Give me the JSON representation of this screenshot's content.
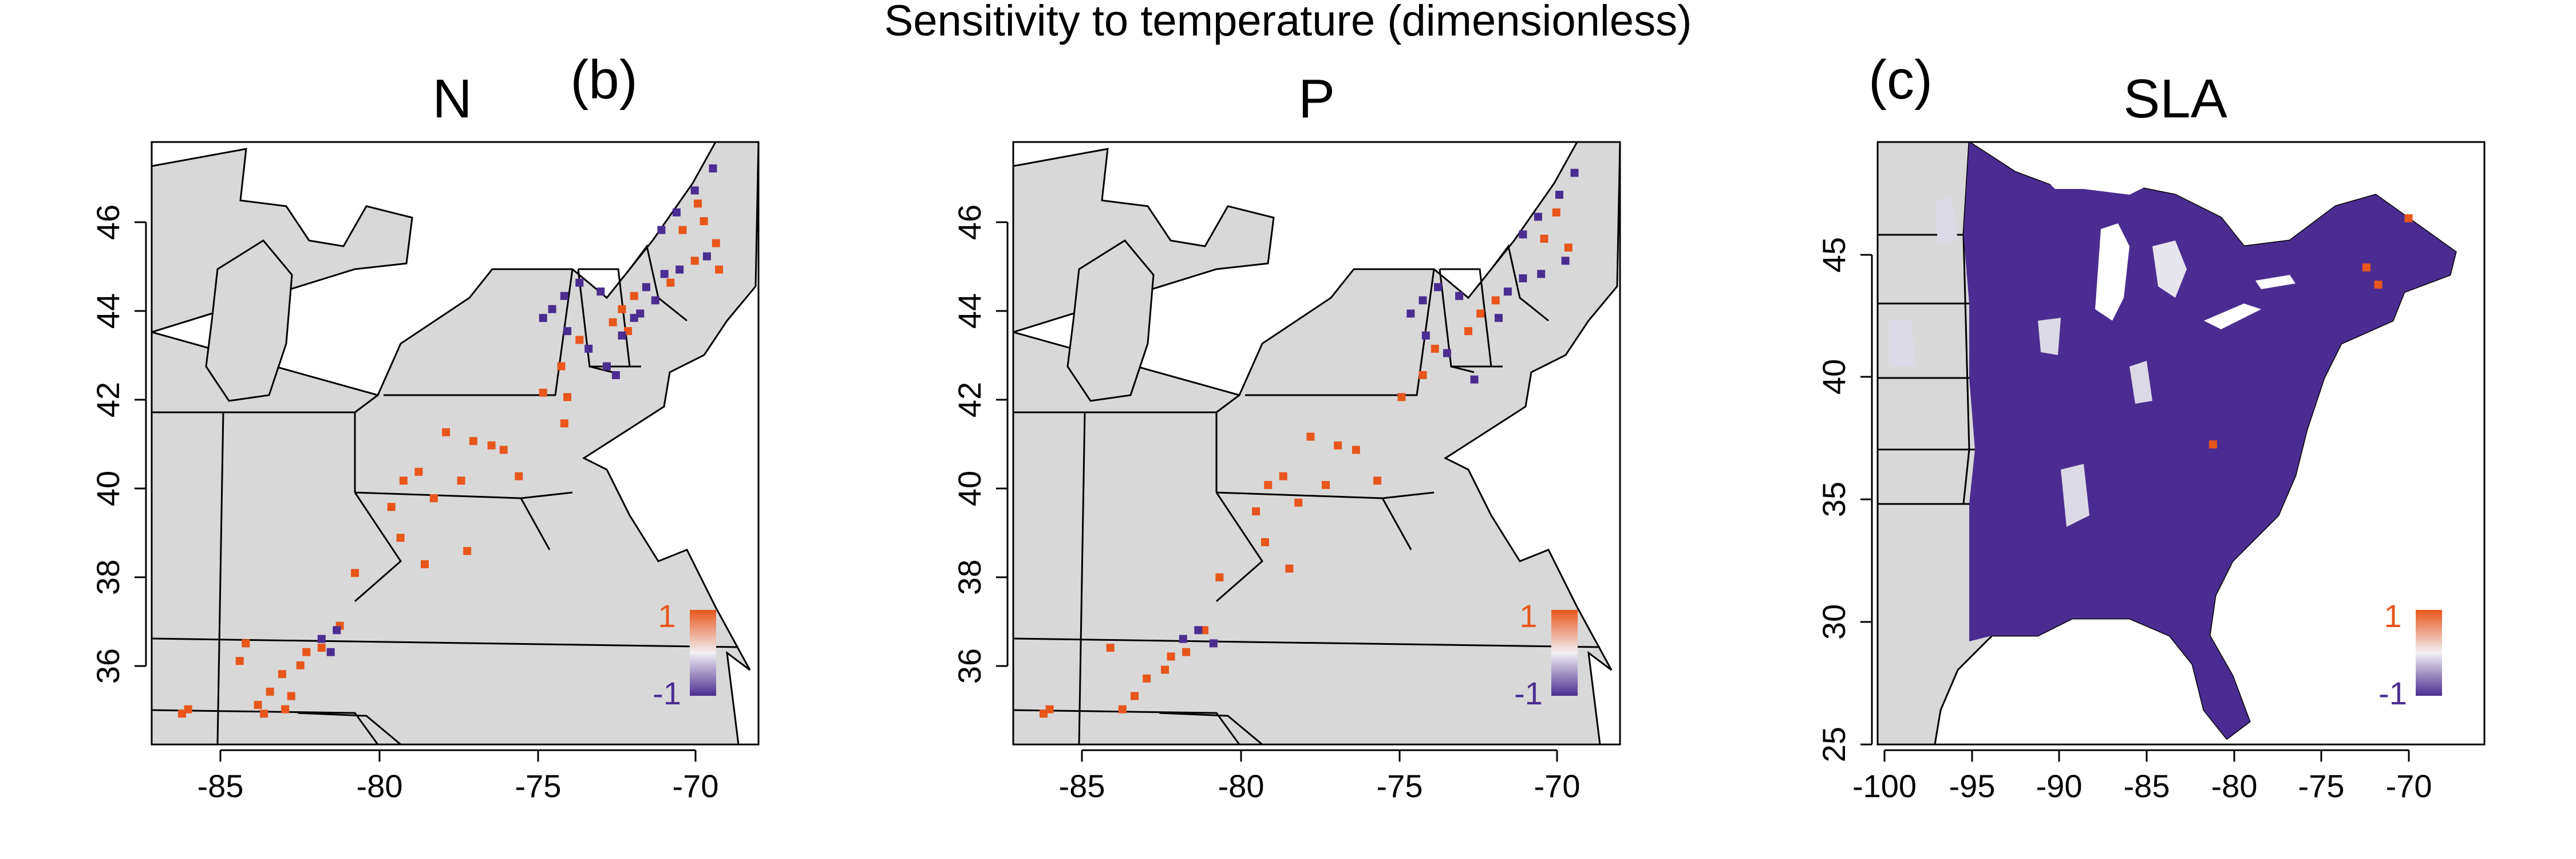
{
  "title": "Sensitivity to temperature (dimensionless)",
  "colors": {
    "positive": "#e8561c",
    "negative": "#4b2d91",
    "land": "#d8d8d8",
    "border": "#000000",
    "frame": "#000000"
  },
  "panels": [
    {
      "id": "n",
      "title": "N",
      "panel_tag": "(b)",
      "xlim": [
        -87.5,
        -67.5
      ],
      "ylim": [
        34.2,
        47.9
      ],
      "xticks": [
        "-85",
        "-80",
        "-75",
        "-70"
      ],
      "yticks": [
        "46",
        "44",
        "42",
        "40",
        "38",
        "36"
      ],
      "legend": {
        "max_label": "1",
        "min_label": "-1"
      }
    },
    {
      "id": "p",
      "title": "P",
      "panel_tag": "",
      "xlim": [
        -87.5,
        -67.5
      ],
      "ylim": [
        34.2,
        47.9
      ],
      "xticks": [
        "-85",
        "-80",
        "-75",
        "-70"
      ],
      "yticks": [
        "46",
        "44",
        "42",
        "40",
        "38",
        "36"
      ],
      "legend": {
        "max_label": "1",
        "min_label": "-1"
      }
    },
    {
      "id": "sla",
      "title": "SLA",
      "panel_tag": "(c)",
      "xlim": [
        -101.5,
        -65.5
      ],
      "ylim": [
        24.8,
        49.3
      ],
      "xticks": [
        "-100",
        "-95",
        "-90",
        "-85",
        "-80",
        "-75",
        "-70"
      ],
      "yticks": [
        "45",
        "40",
        "35",
        "30",
        "25"
      ],
      "legend": {
        "max_label": "1",
        "min_label": "-1"
      }
    }
  ],
  "chart_data": [
    {
      "type": "scatter",
      "panel": "N",
      "xlabel": "",
      "ylabel": "",
      "xlim": [
        -87.5,
        -67.5
      ],
      "ylim": [
        34.2,
        47.9
      ],
      "series": [
        {
          "name": "",
          "color": "#e8561c",
          "points": [
            [
              -69.5,
              46.5
            ],
            [
              -69.3,
              46.1
            ],
            [
              -70.0,
              45.9
            ],
            [
              -68.9,
              45.6
            ],
            [
              -69.6,
              45.2
            ],
            [
              -68.8,
              45.0
            ],
            [
              -70.4,
              44.7
            ],
            [
              -71.6,
              44.4
            ],
            [
              -72.0,
              44.1
            ],
            [
              -72.3,
              43.8
            ],
            [
              -71.8,
              43.6
            ],
            [
              -73.4,
              43.4
            ],
            [
              -74.0,
              42.8
            ],
            [
              -74.6,
              42.2
            ],
            [
              -73.8,
              42.1
            ],
            [
              -73.9,
              41.5
            ],
            [
              -77.8,
              41.3
            ],
            [
              -76.9,
              41.1
            ],
            [
              -76.3,
              41.0
            ],
            [
              -75.9,
              40.9
            ],
            [
              -79.2,
              40.2
            ],
            [
              -78.7,
              40.4
            ],
            [
              -79.6,
              39.6
            ],
            [
              -78.2,
              39.8
            ],
            [
              -77.3,
              40.2
            ],
            [
              -75.4,
              40.3
            ],
            [
              -79.3,
              38.9
            ],
            [
              -78.5,
              38.3
            ],
            [
              -77.1,
              38.6
            ],
            [
              -80.8,
              38.1
            ],
            [
              -81.3,
              36.9
            ],
            [
              -82.4,
              36.3
            ],
            [
              -83.2,
              35.8
            ],
            [
              -83.6,
              35.4
            ],
            [
              -84.0,
              35.1
            ],
            [
              -83.1,
              35.0
            ],
            [
              -82.6,
              36.0
            ],
            [
              -81.9,
              36.4
            ],
            [
              -84.4,
              36.5
            ],
            [
              -84.6,
              36.1
            ],
            [
              -86.3,
              35.0
            ],
            [
              -86.5,
              34.9
            ],
            [
              -83.8,
              34.9
            ],
            [
              -82.9,
              35.3
            ]
          ]
        },
        {
          "name": "",
          "color": "#4b2d91",
          "points": [
            [
              -69.0,
              47.3
            ],
            [
              -69.6,
              46.8
            ],
            [
              -70.2,
              46.3
            ],
            [
              -70.7,
              45.9
            ],
            [
              -69.2,
              45.3
            ],
            [
              -70.1,
              45.0
            ],
            [
              -70.6,
              44.9
            ],
            [
              -71.2,
              44.6
            ],
            [
              -70.9,
              44.3
            ],
            [
              -71.4,
              44.0
            ],
            [
              -71.6,
              43.9
            ],
            [
              -72.0,
              43.5
            ],
            [
              -72.7,
              44.5
            ],
            [
              -73.4,
              44.7
            ],
            [
              -73.9,
              44.4
            ],
            [
              -74.3,
              44.1
            ],
            [
              -74.6,
              43.9
            ],
            [
              -73.8,
              43.6
            ],
            [
              -73.1,
              43.2
            ],
            [
              -72.5,
              42.8
            ],
            [
              -72.2,
              42.6
            ],
            [
              -81.4,
              36.8
            ],
            [
              -81.9,
              36.6
            ],
            [
              -81.6,
              36.3
            ]
          ]
        }
      ]
    },
    {
      "type": "scatter",
      "panel": "P",
      "xlabel": "",
      "ylabel": "",
      "xlim": [
        -87.5,
        -67.5
      ],
      "ylim": [
        34.2,
        47.9
      ],
      "series": [
        {
          "name": "",
          "color": "#e8561c",
          "points": [
            [
              -69.6,
              46.3
            ],
            [
              -70.0,
              45.7
            ],
            [
              -69.2,
              45.5
            ],
            [
              -71.6,
              44.3
            ],
            [
              -72.1,
              44.0
            ],
            [
              -72.5,
              43.6
            ],
            [
              -73.6,
              43.2
            ],
            [
              -74.0,
              42.6
            ],
            [
              -74.7,
              42.1
            ],
            [
              -77.7,
              41.2
            ],
            [
              -76.8,
              41.0
            ],
            [
              -76.2,
              40.9
            ],
            [
              -79.1,
              40.1
            ],
            [
              -78.6,
              40.3
            ],
            [
              -79.5,
              39.5
            ],
            [
              -78.1,
              39.7
            ],
            [
              -77.2,
              40.1
            ],
            [
              -75.5,
              40.2
            ],
            [
              -79.2,
              38.8
            ],
            [
              -78.4,
              38.2
            ],
            [
              -80.7,
              38.0
            ],
            [
              -81.2,
              36.8
            ],
            [
              -82.3,
              36.2
            ],
            [
              -83.1,
              35.7
            ],
            [
              -83.5,
              35.3
            ],
            [
              -83.9,
              35.0
            ],
            [
              -82.5,
              35.9
            ],
            [
              -81.8,
              36.3
            ],
            [
              -84.3,
              36.4
            ],
            [
              -86.3,
              35.0
            ],
            [
              -86.5,
              34.9
            ]
          ]
        },
        {
          "name": "",
          "color": "#4b2d91",
          "points": [
            [
              -69.0,
              47.2
            ],
            [
              -69.5,
              46.7
            ],
            [
              -70.2,
              46.2
            ],
            [
              -70.7,
              45.8
            ],
            [
              -69.3,
              45.2
            ],
            [
              -70.1,
              44.9
            ],
            [
              -70.7,
              44.8
            ],
            [
              -71.2,
              44.5
            ],
            [
              -71.5,
              43.9
            ],
            [
              -72.8,
              44.4
            ],
            [
              -73.5,
              44.6
            ],
            [
              -74.0,
              44.3
            ],
            [
              -74.4,
              44.0
            ],
            [
              -73.9,
              43.5
            ],
            [
              -73.2,
              43.1
            ],
            [
              -72.3,
              42.5
            ],
            [
              -81.4,
              36.8
            ],
            [
              -81.9,
              36.6
            ],
            [
              -80.9,
              36.5
            ]
          ]
        }
      ]
    },
    {
      "type": "scatter",
      "panel": "SLA",
      "xlabel": "",
      "ylabel": "",
      "xlim": [
        -101.5,
        -65.5
      ],
      "ylim": [
        24.8,
        49.3
      ],
      "series": [
        {
          "name": "",
          "color": "#e8561c",
          "points": [
            [
              -72.5,
              44.2
            ],
            [
              -71.8,
              43.5
            ],
            [
              -70.0,
              46.2
            ],
            [
              -81.6,
              37.0
            ]
          ]
        },
        {
          "name": "",
          "color": "#4b2d91",
          "points": []
        }
      ]
    }
  ]
}
